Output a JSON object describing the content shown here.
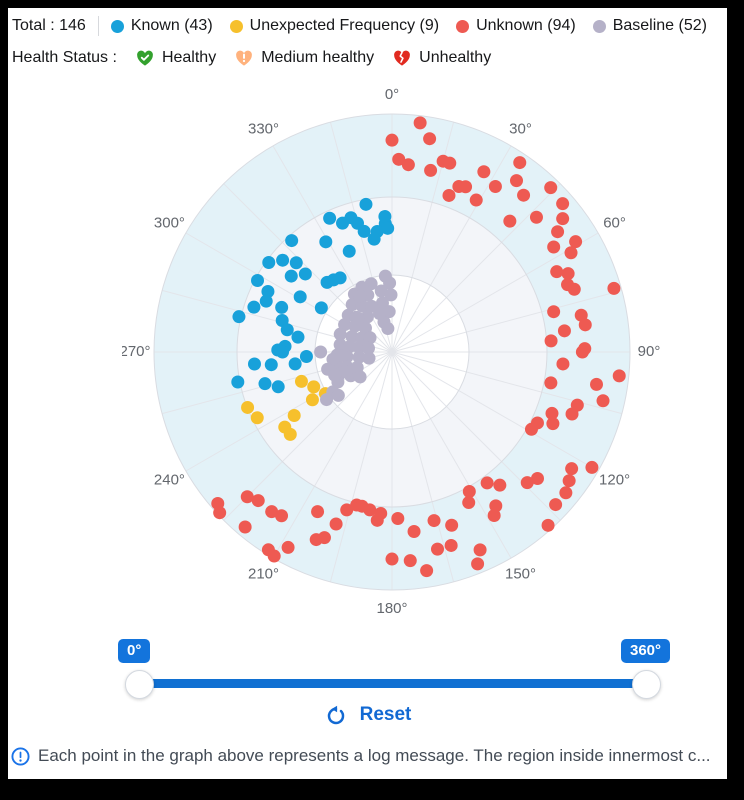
{
  "header": {
    "total_label": "Total : 146",
    "legend": {
      "items": [
        {
          "label": "Known (43)",
          "color": "#18a1da"
        },
        {
          "label": "Unexpected Frequency (9)",
          "color": "#f6c02c"
        },
        {
          "label": "Unknown (94)",
          "color": "#ee5a52"
        },
        {
          "label": "Baseline (52)",
          "color": "#b5b1c8"
        }
      ]
    },
    "health": {
      "title": "Health Status :",
      "items": [
        {
          "label": "Healthy",
          "color": "#33a12e",
          "icon": "heart-check"
        },
        {
          "label": "Medium healthy",
          "color": "#ffb27d",
          "icon": "heart-exclamation"
        },
        {
          "label": "Unhealthy",
          "color": "#e12a20",
          "icon": "heart-broken"
        }
      ]
    }
  },
  "slider": {
    "start_value": "0°",
    "end_value": "360°",
    "min": 0,
    "max": 360,
    "track_color": "#1070d2",
    "badge_color": "#1374dc"
  },
  "reset": {
    "label": "Reset",
    "color": "#1269d3"
  },
  "footer": {
    "info_text": "Each point in the graph above represents a log message. The region inside innermost c..."
  },
  "chart_data": {
    "type": "scatter",
    "subtype": "polar",
    "orientation": "0° at top, clockwise",
    "angle_labels": [
      "0°",
      "30°",
      "60°",
      "90°",
      "120°",
      "150°",
      "180°",
      "210°",
      "240°",
      "270°",
      "300°",
      "330°"
    ],
    "angle_tick_step_deg": 30,
    "spoke_step_deg": 15,
    "grid": true,
    "label_radius_px": 257,
    "rings": [
      {
        "r": 77,
        "fill": "#ffffff"
      },
      {
        "r": 155,
        "fill": "#f3f5f9"
      },
      {
        "r": 238,
        "fill": "#e3f2f8"
      }
    ],
    "grid_line_color": "#e3e5ea",
    "ring_line_color": "#d9dce2",
    "point_radius_px": 6.5,
    "series": [
      {
        "name": "Known",
        "count": 43,
        "color": "#18a1da",
        "points": [
          [
            350,
            0.63
          ],
          [
            335,
            0.62
          ],
          [
            343,
            0.59
          ],
          [
            345,
            0.56
          ],
          [
            357,
            0.54
          ],
          [
            353,
            0.51
          ],
          [
            351,
            0.48
          ],
          [
            318,
            0.63
          ],
          [
            329,
            0.54
          ],
          [
            337,
            0.46
          ],
          [
            306,
            0.64
          ],
          [
            313,
            0.55
          ],
          [
            312,
            0.49
          ],
          [
            307,
            0.53
          ],
          [
            298,
            0.64
          ],
          [
            296,
            0.58
          ],
          [
            292,
            0.57
          ],
          [
            288,
            0.61
          ],
          [
            301,
            0.45
          ],
          [
            302,
            0.35
          ],
          [
            317,
            0.4
          ],
          [
            321,
            0.39
          ],
          [
            325,
            0.38
          ],
          [
            283,
            0.66
          ],
          [
            286,
            0.48
          ],
          [
            282,
            0.45
          ],
          [
            279,
            0.4
          ],
          [
            273,
            0.45
          ],
          [
            271,
            0.48
          ],
          [
            270,
            0.46
          ],
          [
            264,
            0.51
          ],
          [
            263,
            0.41
          ],
          [
            267,
            0.36
          ],
          [
            259,
            0.66
          ],
          [
            256,
            0.55
          ],
          [
            253,
            0.5
          ],
          [
            357,
            0.57
          ],
          [
            358,
            0.52
          ],
          [
            339,
            0.58
          ],
          [
            347,
            0.52
          ],
          [
            310,
            0.6
          ],
          [
            292,
            0.5
          ],
          [
            265,
            0.58
          ]
        ]
      },
      {
        "name": "Unexpected Frequency",
        "count": 9,
        "color": "#f6c02c",
        "points": [
          [
            252,
            0.4
          ],
          [
            246,
            0.36
          ],
          [
            239,
            0.39
          ],
          [
            249,
            0.65
          ],
          [
            244,
            0.63
          ],
          [
            237,
            0.49
          ],
          [
            235,
            0.55
          ],
          [
            231,
            0.55
          ],
          [
            238,
            0.33
          ]
        ]
      },
      {
        "name": "Unknown",
        "count": 94,
        "color": "#ee5a52",
        "points": [
          [
            7,
            0.97
          ],
          [
            0,
            0.89
          ],
          [
            10,
            0.91
          ],
          [
            2,
            0.81
          ],
          [
            5,
            0.79
          ],
          [
            12,
            0.78
          ],
          [
            15,
            0.83
          ],
          [
            17,
            0.83
          ],
          [
            22,
            0.75
          ],
          [
            24,
            0.76
          ],
          [
            20,
            0.7
          ],
          [
            29,
            0.73
          ],
          [
            27,
            0.85
          ],
          [
            32,
            0.82
          ],
          [
            34,
            0.96
          ],
          [
            36,
            0.89
          ],
          [
            40,
            0.86
          ],
          [
            44,
            0.96
          ],
          [
            49,
            0.95
          ],
          [
            52,
            0.91
          ],
          [
            42,
            0.74
          ],
          [
            47,
            0.83
          ],
          [
            54,
            0.86
          ],
          [
            59,
            0.9
          ],
          [
            61,
            0.86
          ],
          [
            57,
            0.81
          ],
          [
            64,
            0.77
          ],
          [
            66,
            0.81
          ],
          [
            69,
            0.79
          ],
          [
            71,
            0.81
          ],
          [
            74,
            0.97
          ],
          [
            76,
            0.7
          ],
          [
            79,
            0.81
          ],
          [
            82,
            0.82
          ],
          [
            83,
            0.73
          ],
          [
            86,
            0.67
          ],
          [
            89,
            0.81
          ],
          [
            90,
            0.8
          ],
          [
            94,
            0.72
          ],
          [
            96,
            0.96
          ],
          [
            99,
            0.87
          ],
          [
            101,
            0.68
          ],
          [
            103,
            0.91
          ],
          [
            106,
            0.81
          ],
          [
            109,
            0.8
          ],
          [
            111,
            0.72
          ],
          [
            114,
            0.74
          ],
          [
            119,
            0.67
          ],
          [
            116,
            0.68
          ],
          [
            120,
            0.97
          ],
          [
            123,
            0.9
          ],
          [
            126,
            0.92
          ],
          [
            129,
            0.94
          ],
          [
            131,
            0.81
          ],
          [
            134,
            0.79
          ],
          [
            144,
            0.68
          ],
          [
            141,
            0.72
          ],
          [
            151,
            0.67
          ],
          [
            153,
            0.71
          ],
          [
            148,
            0.81
          ],
          [
            146,
            0.78
          ],
          [
            133,
            0.94
          ],
          [
            138,
            0.98
          ],
          [
            178,
            0.7
          ],
          [
            166,
            0.73
          ],
          [
            161,
            0.77
          ],
          [
            173,
            0.76
          ],
          [
            167,
            0.85
          ],
          [
            163,
            0.85
          ],
          [
            156,
            0.91
          ],
          [
            158,
            0.96
          ],
          [
            171,
            0.93
          ],
          [
            175,
            0.88
          ],
          [
            180,
            0.87
          ],
          [
            229,
            0.97
          ],
          [
            227,
            0.99
          ],
          [
            225,
            0.86
          ],
          [
            222,
            0.84
          ],
          [
            217,
            0.84
          ],
          [
            214,
            0.83
          ],
          [
            220,
            0.96
          ],
          [
            212,
            0.98
          ],
          [
            210,
            0.99
          ],
          [
            208,
            0.93
          ],
          [
            205,
            0.74
          ],
          [
            202,
            0.85
          ],
          [
            200,
            0.83
          ],
          [
            198,
            0.76
          ],
          [
            196,
            0.69
          ],
          [
            193,
            0.66
          ],
          [
            191,
            0.66
          ],
          [
            188,
            0.67
          ],
          [
            184,
            0.68
          ],
          [
            185,
            0.71
          ]
        ]
      },
      {
        "name": "Baseline",
        "count": 52,
        "color": "#b5b1c8",
        "points": [
          [
            355,
            0.32
          ],
          [
            358,
            0.29
          ],
          [
            350,
            0.26
          ],
          [
            359,
            0.24
          ],
          [
            349,
            0.21
          ],
          [
            356,
            0.17
          ],
          [
            343,
            0.3
          ],
          [
            335,
            0.3
          ],
          [
            327,
            0.29
          ],
          [
            337,
            0.26
          ],
          [
            320,
            0.26
          ],
          [
            327,
            0.23
          ],
          [
            336,
            0.21
          ],
          [
            310,
            0.24
          ],
          [
            314,
            0.21
          ],
          [
            325,
            0.18
          ],
          [
            300,
            0.23
          ],
          [
            305,
            0.19
          ],
          [
            312,
            0.15
          ],
          [
            289,
            0.23
          ],
          [
            291,
            0.18
          ],
          [
            295,
            0.14
          ],
          [
            303,
            0.11
          ],
          [
            278,
            0.22
          ],
          [
            277,
            0.18
          ],
          [
            278,
            0.14
          ],
          [
            279,
            0.1
          ],
          [
            267,
            0.23
          ],
          [
            264,
            0.19
          ],
          [
            261,
            0.14
          ],
          [
            255,
            0.1
          ],
          [
            257,
            0.24
          ],
          [
            252,
            0.2
          ],
          [
            246,
            0.16
          ],
          [
            247,
            0.24
          ],
          [
            240,
            0.2
          ],
          [
            232,
            0.17
          ],
          [
            270,
            0.3
          ],
          [
            263,
            0.25
          ],
          [
            266,
            0.21
          ],
          [
            247,
            0.21
          ],
          [
            241,
            0.26
          ],
          [
            236,
            0.3
          ],
          [
            231,
            0.29
          ],
          [
            234,
            0.34
          ],
          [
            330,
            0.27
          ],
          [
            315,
            0.2
          ],
          [
            345,
            0.13
          ],
          [
            255,
            0.28
          ],
          [
            248,
            0.26
          ],
          [
            350,
            0.1
          ],
          [
            342,
            0.17
          ]
        ]
      }
    ]
  }
}
